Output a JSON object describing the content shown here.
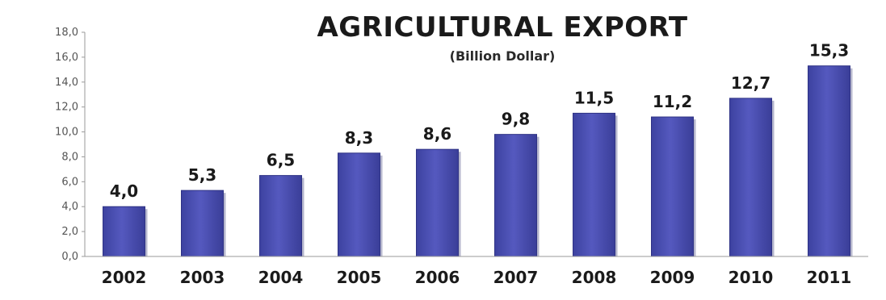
{
  "chart_data": {
    "type": "bar",
    "title": "AGRICULTURAL EXPORT",
    "subtitle": "(Billion Dollar)",
    "xlabel": "",
    "ylabel": "",
    "categories": [
      "2002",
      "2003",
      "2004",
      "2005",
      "2006",
      "2007",
      "2008",
      "2009",
      "2010",
      "2011"
    ],
    "values": [
      4.0,
      5.3,
      6.5,
      8.3,
      8.6,
      9.8,
      11.5,
      11.2,
      12.7,
      15.3
    ],
    "data_labels": [
      "4,0",
      "5,3",
      "6,5",
      "8,3",
      "8,6",
      "9,8",
      "11,5",
      "11,2",
      "12,7",
      "15,3"
    ],
    "ylim": [
      0,
      18
    ],
    "yticks": [
      0,
      2,
      4,
      6,
      8,
      10,
      12,
      14,
      16,
      18
    ],
    "ytick_labels": [
      "0,0",
      "2,0",
      "4,0",
      "6,0",
      "8,0",
      "10,0",
      "12,0",
      "14,0",
      "16,0",
      "18,0"
    ],
    "grid": false,
    "legend": "none",
    "colors": {
      "bar_fill": "#4a4fb0",
      "bar_shadow": "#2c2f6e",
      "axis": "#9a9a9a"
    }
  }
}
